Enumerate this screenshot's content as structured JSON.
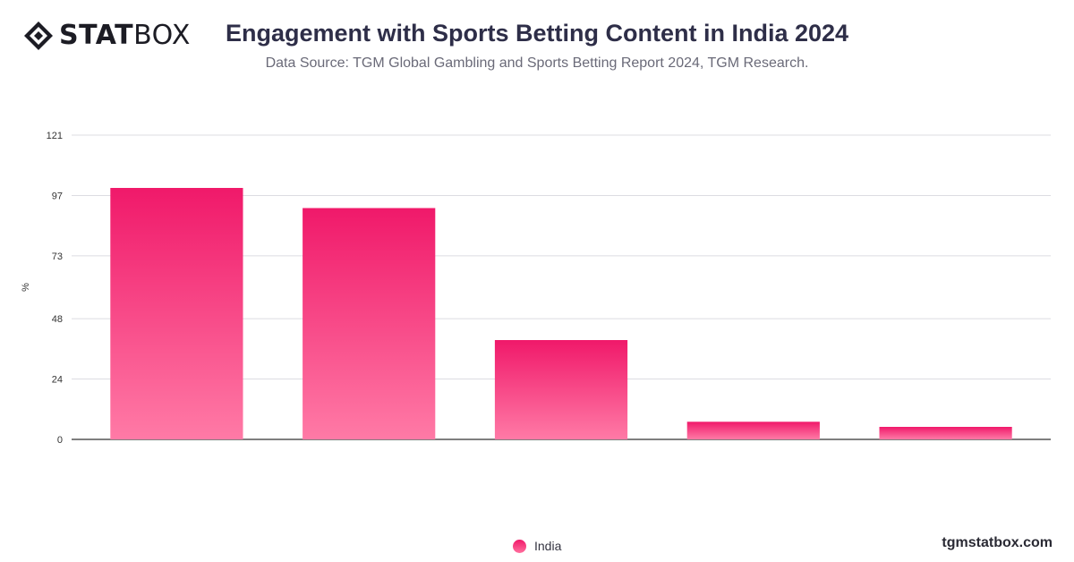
{
  "brand": {
    "logo_bold": "STAT",
    "logo_light": "BOX",
    "site": "tgmstatbox.com"
  },
  "header": {
    "title": "Engagement with Sports Betting Content in India 2024",
    "subtitle": "Data Source: TGM Global Gambling and Sports Betting Report 2024, TGM Research."
  },
  "colors": {
    "bar_top": "#f0196a",
    "bar_bottom": "#ff7aa6",
    "grid": "#dcdce2",
    "axis": "#333333",
    "tick_text": "#333333"
  },
  "chart_data": {
    "type": "bar",
    "title": "Engagement with Sports Betting Content in India 2024",
    "xlabel": "",
    "ylabel": "%",
    "ylim": [
      0,
      121
    ],
    "yticks": [
      0,
      24,
      48,
      73,
      97,
      121
    ],
    "categories": [
      "",
      "",
      "",
      "",
      ""
    ],
    "series": [
      {
        "name": "India",
        "values": [
          100,
          92,
          39.5,
          7,
          5
        ]
      }
    ],
    "grid": true,
    "legend": "bottom-center"
  }
}
